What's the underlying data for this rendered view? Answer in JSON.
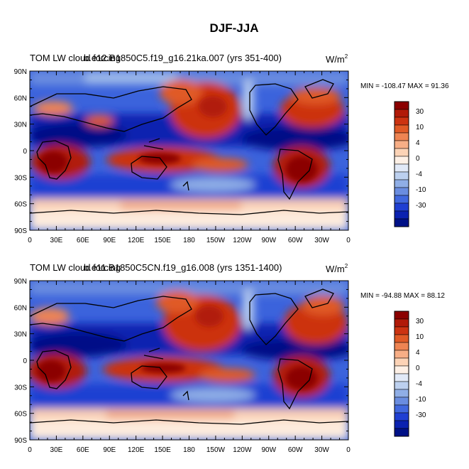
{
  "title": "DJF-JJA",
  "chart_data": [
    {
      "type": "heatmap",
      "subtitle_left_a": "TOM LW cloud forcing",
      "subtitle_left_b": "b.e12.B1850C5.f19_g16.21ka.007 (yrs 351-400)",
      "units_base": "W/m",
      "units_exp": "2",
      "stats": "MIN = -108.47 MAX =  91.36",
      "x_ticks": [
        "0",
        "30E",
        "60E",
        "90E",
        "120E",
        "150E",
        "180",
        "150W",
        "120W",
        "90W",
        "60W",
        "30W",
        "0"
      ],
      "y_ticks": [
        "90N",
        "60N",
        "30N",
        "0",
        "30S",
        "60S",
        "90S"
      ],
      "colorbar_labels": [
        "30",
        "10",
        "4",
        "0",
        "-4",
        "-10",
        "-30"
      ],
      "colorbar_colors": [
        "#8b0000",
        "#b11a08",
        "#cc3311",
        "#e05a26",
        "#ee8452",
        "#f7ae86",
        "#fcd3b6",
        "#fdf0e6",
        "#e1e9f7",
        "#bcd0ef",
        "#8faee6",
        "#6a8de0",
        "#4168de",
        "#1f3fd2",
        "#0b22b0",
        "#001187"
      ],
      "x_range": [
        0,
        360
      ],
      "y_range": [
        -90,
        90
      ]
    },
    {
      "type": "heatmap",
      "subtitle_left_a": "TOM LW cloud forcing",
      "subtitle_left_b": "b.e11.B1850C5CN.f19_g16.008 (yrs 1351-1400)",
      "units_base": "W/m",
      "units_exp": "2",
      "stats": "MIN = -94.88 MAX =  88.12",
      "x_ticks": [
        "0",
        "30E",
        "60E",
        "90E",
        "120E",
        "150E",
        "180",
        "150W",
        "120W",
        "90W",
        "60W",
        "30W",
        "0"
      ],
      "y_ticks": [
        "90N",
        "60N",
        "30N",
        "0",
        "30S",
        "60S",
        "90S"
      ],
      "colorbar_labels": [
        "30",
        "10",
        "4",
        "0",
        "-4",
        "-10",
        "-30"
      ],
      "colorbar_colors": [
        "#8b0000",
        "#b11a08",
        "#cc3311",
        "#e05a26",
        "#ee8452",
        "#f7ae86",
        "#fcd3b6",
        "#fdf0e6",
        "#e1e9f7",
        "#bcd0ef",
        "#8faee6",
        "#6a8de0",
        "#4168de",
        "#1f3fd2",
        "#0b22b0",
        "#001187"
      ],
      "x_range": [
        0,
        360
      ],
      "y_range": [
        -90,
        90
      ]
    }
  ]
}
